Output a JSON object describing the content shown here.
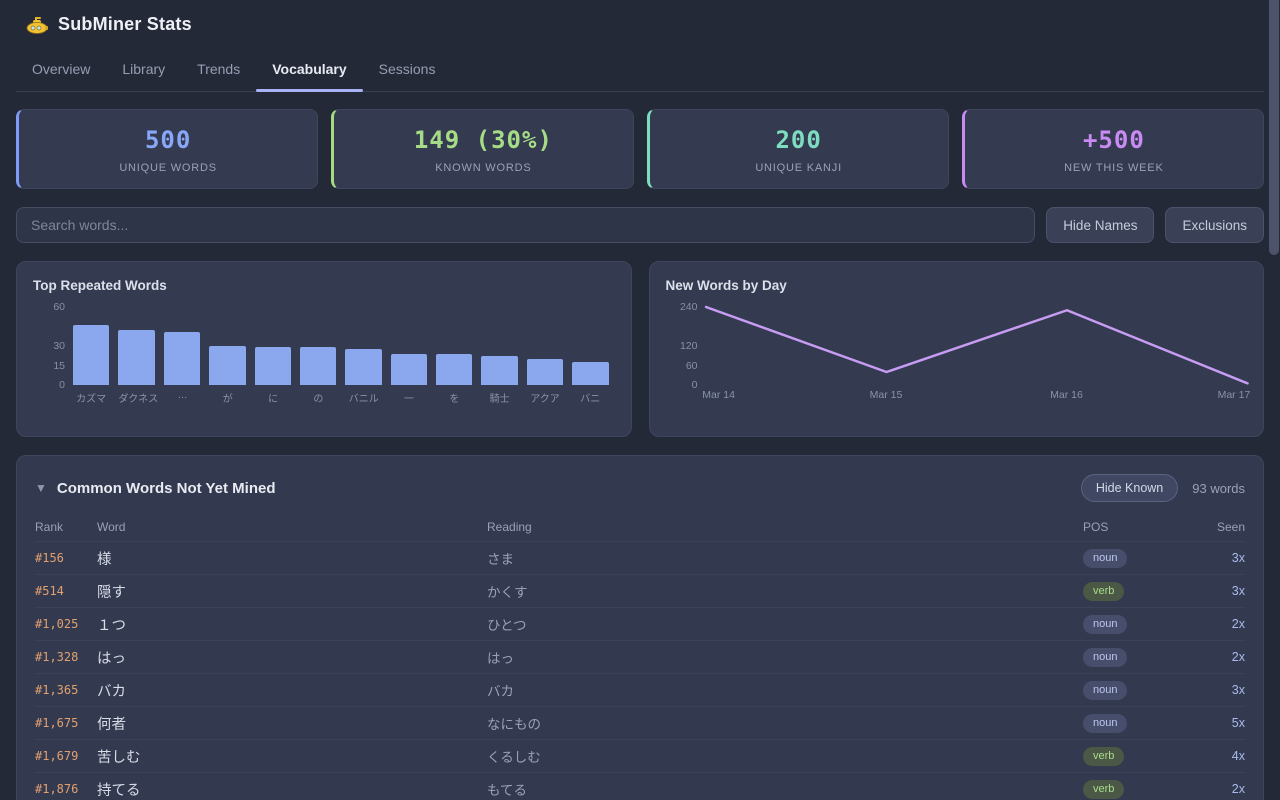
{
  "app": {
    "title": "SubMiner Stats",
    "logo": "submarine-icon"
  },
  "tabs": [
    {
      "label": "Overview",
      "active": false
    },
    {
      "label": "Library",
      "active": false
    },
    {
      "label": "Trends",
      "active": false
    },
    {
      "label": "Vocabulary",
      "active": true
    },
    {
      "label": "Sessions",
      "active": false
    }
  ],
  "stats": [
    {
      "value": "500",
      "label": "UNIQUE WORDS",
      "color": "#88a7f8",
      "accent": "#7d9cf8"
    },
    {
      "value": "149 (30%)",
      "label": "KNOWN WORDS",
      "color": "#a5dc85",
      "accent": "#a3db81"
    },
    {
      "value": "200",
      "label": "UNIQUE KANJI",
      "color": "#7edcc0",
      "accent": "#7edcc0"
    },
    {
      "value": "+500",
      "label": "NEW THIS WEEK",
      "color": "#c98bf2",
      "accent": "#c98bf2"
    }
  ],
  "search": {
    "placeholder": "Search words...",
    "value": ""
  },
  "actions": {
    "hide_names": "Hide Names",
    "exclusions": "Exclusions"
  },
  "chart_data": [
    {
      "type": "bar",
      "title": "Top Repeated Words",
      "categories": [
        "カズマ",
        "ダクネス",
        "…",
        "が",
        "に",
        "の",
        "バニル",
        "一",
        "を",
        "騎士",
        "アクア",
        "バニ"
      ],
      "values": [
        46,
        42,
        41,
        30,
        29,
        29,
        28,
        24,
        24,
        22,
        20,
        18
      ],
      "ylim": [
        0,
        60
      ],
      "yticks": [
        0,
        15,
        30,
        60
      ],
      "grid": false,
      "bar_color": "#8ba8ee"
    },
    {
      "type": "line",
      "title": "New Words by Day",
      "x": [
        "Mar 14",
        "Mar 15",
        "Mar 16",
        "Mar 17"
      ],
      "values": [
        240,
        40,
        230,
        5
      ],
      "ylim": [
        0,
        240
      ],
      "yticks": [
        0,
        60,
        120,
        240
      ],
      "grid": false,
      "line_color": "#c79cf2"
    }
  ],
  "table": {
    "collapse_icon": "▼",
    "title": "Common Words Not Yet Mined",
    "hide_known_label": "Hide Known",
    "word_count": "93 words",
    "columns": [
      "Rank",
      "Word",
      "Reading",
      "POS",
      "Seen"
    ],
    "pos_styles": {
      "noun": {
        "bg": "#474e6b",
        "text": "#bcc7f2"
      },
      "verb": {
        "bg": "#4a5845",
        "text": "#abdb8c"
      }
    },
    "rows": [
      {
        "rank": "#156",
        "word": "様",
        "reading": "さま",
        "pos": "noun",
        "seen": "3x"
      },
      {
        "rank": "#514",
        "word": "隠す",
        "reading": "かくす",
        "pos": "verb",
        "seen": "3x"
      },
      {
        "rank": "#1,025",
        "word": "１つ",
        "reading": "ひとつ",
        "pos": "noun",
        "seen": "2x"
      },
      {
        "rank": "#1,328",
        "word": "はっ",
        "reading": "はっ",
        "pos": "noun",
        "seen": "2x"
      },
      {
        "rank": "#1,365",
        "word": "バカ",
        "reading": "バカ",
        "pos": "noun",
        "seen": "3x"
      },
      {
        "rank": "#1,675",
        "word": "何者",
        "reading": "なにもの",
        "pos": "noun",
        "seen": "5x"
      },
      {
        "rank": "#1,679",
        "word": "苦しむ",
        "reading": "くるしむ",
        "pos": "verb",
        "seen": "4x"
      },
      {
        "rank": "#1,876",
        "word": "持てる",
        "reading": "もてる",
        "pos": "verb",
        "seen": "2x"
      }
    ]
  }
}
